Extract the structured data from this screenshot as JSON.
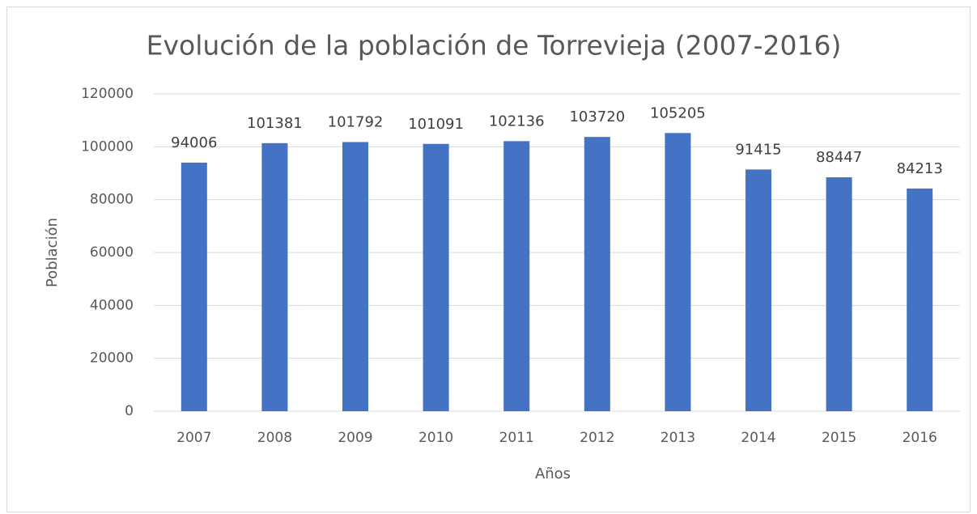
{
  "chart_data": {
    "type": "bar",
    "title": "Evolución de la población de Torrevieja (2007-2016)",
    "x_label": "Años",
    "y_label": "Población",
    "categories": [
      "2007",
      "2008",
      "2009",
      "2010",
      "2011",
      "2012",
      "2013",
      "2014",
      "2015",
      "2016"
    ],
    "values": [
      94006,
      101381,
      101792,
      101091,
      102136,
      103720,
      105205,
      91415,
      88447,
      84213
    ],
    "color": "#4472c4",
    "ylim": [
      0,
      120000
    ],
    "yticks": [
      0,
      20000,
      40000,
      60000,
      80000,
      100000,
      120000
    ],
    "grid": true
  }
}
